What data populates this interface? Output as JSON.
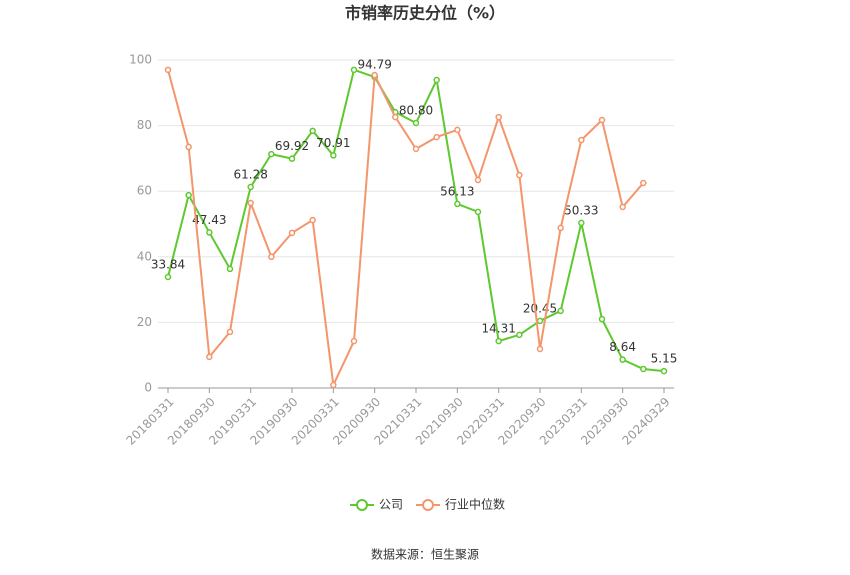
{
  "chart_data": {
    "type": "line",
    "title": "市销率历史分位（%）",
    "categories": [
      "20180331",
      null,
      "20180930",
      null,
      "20190331",
      null,
      "20190930",
      null,
      "20200331",
      null,
      "20200930",
      null,
      "20210331",
      null,
      "20210930",
      null,
      "20220331",
      null,
      "20220930",
      null,
      "20230331",
      null,
      "20230930",
      null,
      "20240329"
    ],
    "series": [
      {
        "name": "公司",
        "color": "#5ec82f",
        "values": [
          33.84,
          58.8,
          47.43,
          36.3,
          61.28,
          71.3,
          69.92,
          78.4,
          70.91,
          97.0,
          94.79,
          84.1,
          80.8,
          93.9,
          56.13,
          53.7,
          14.31,
          16.2,
          20.45,
          23.5,
          50.33,
          21.0,
          8.64,
          5.8,
          5.15
        ],
        "value_labels": [
          "33.84",
          null,
          "47.43",
          null,
          "61.28",
          null,
          "69.92",
          null,
          "70.91",
          null,
          "94.79",
          null,
          "80.80",
          null,
          "56.13",
          null,
          "14.31",
          null,
          "20.45",
          null,
          "50.33",
          null,
          "8.64",
          null,
          "5.15"
        ]
      },
      {
        "name": "行业中位数",
        "color": "#f4956b",
        "values": [
          97.0,
          73.5,
          9.5,
          17.1,
          56.4,
          40.0,
          47.3,
          51.2,
          0.9,
          14.3,
          95.4,
          82.6,
          72.9,
          76.5,
          78.7,
          63.4,
          82.6,
          64.9,
          11.9,
          48.8,
          75.6,
          81.7,
          55.2,
          62.5,
          null
        ]
      }
    ],
    "ylim": [
      0,
      100
    ],
    "yticks": [
      0,
      20,
      40,
      60,
      80,
      100
    ],
    "grid": true,
    "legend": "bottom",
    "source": "数据来源：恒生聚源"
  }
}
